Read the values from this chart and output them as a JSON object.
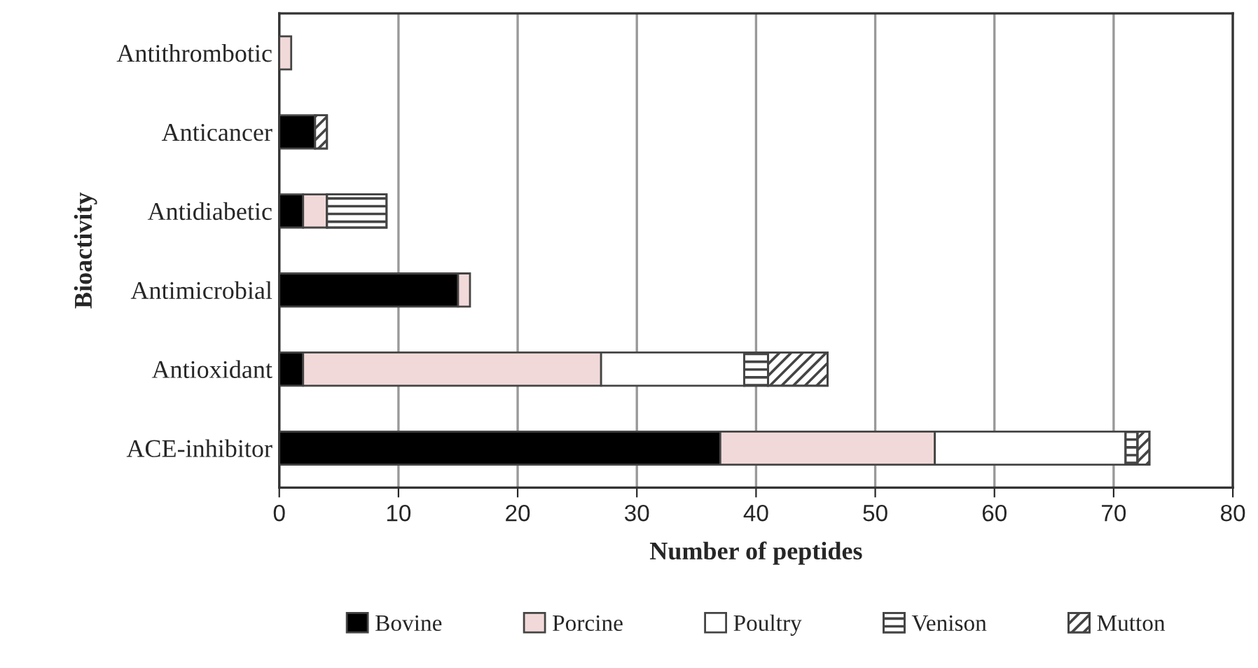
{
  "chart_data": {
    "type": "bar",
    "orientation": "horizontal",
    "stacked": true,
    "categories": [
      "Antithrombotic",
      "Anticancer",
      "Antidiabetic",
      "Antimicrobial",
      "Antioxidant",
      "ACE-inhibitor"
    ],
    "series": [
      {
        "name": "Bovine",
        "color": "#000000",
        "values": [
          0,
          3,
          2,
          15,
          2,
          37
        ]
      },
      {
        "name": "Porcine",
        "color": "#f2d9d9",
        "values": [
          1,
          0,
          2,
          1,
          25,
          18
        ]
      },
      {
        "name": "Poultry",
        "color": "#ffffff",
        "values": [
          0,
          0,
          0,
          0,
          12,
          16
        ]
      },
      {
        "name": "Venison",
        "color": "#ffffff",
        "values": [
          0,
          0,
          5,
          0,
          2,
          1
        ]
      },
      {
        "name": "Mutton",
        "color": "#ffffff",
        "values": [
          0,
          1,
          0,
          0,
          5,
          1
        ]
      }
    ],
    "xlim": [
      0,
      80
    ],
    "xticks": [
      0,
      10,
      20,
      30,
      40,
      50,
      60,
      70,
      80
    ],
    "xlabel": "Number of peptides",
    "ylabel": "Bioactivity",
    "grid": "x",
    "legend": "bottom"
  }
}
